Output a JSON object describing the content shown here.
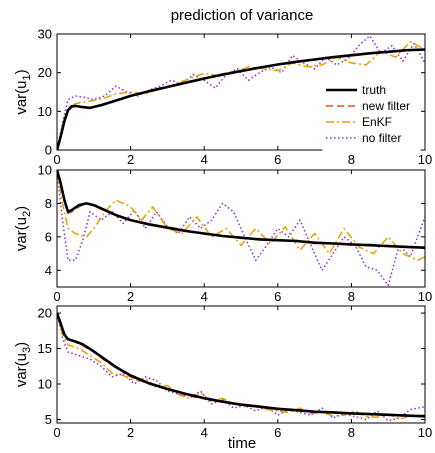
{
  "figure": {
    "title": "prediction of variance",
    "xlabel": "time"
  },
  "legend": {
    "placement": "top-right",
    "entries": [
      {
        "name": "truth",
        "color": "#000000",
        "style": "solid"
      },
      {
        "name": "new filter",
        "color": "#e8501e",
        "style": "dashed"
      },
      {
        "name": "EnKF",
        "color": "#e8a000",
        "style": "dashdot"
      },
      {
        "name": "no filter",
        "color": "#8a2be2",
        "style": "dotted"
      }
    ]
  },
  "chart_data": [
    {
      "type": "line",
      "ylabel_base": "var(u",
      "ylabel_sub": "1",
      "ylabel_end": ")",
      "xlim": [
        0,
        10
      ],
      "ylim": [
        0,
        30
      ],
      "xticks": [
        0,
        2,
        4,
        6,
        8,
        10
      ],
      "yticks": [
        0,
        10,
        20,
        30
      ],
      "series": [
        {
          "name": "truth",
          "x": [
            0,
            0.1,
            0.2,
            0.3,
            0.4,
            0.5,
            0.7,
            0.9,
            1.2,
            1.5,
            2,
            2.5,
            3,
            3.5,
            4,
            4.5,
            5,
            5.5,
            6,
            6.5,
            7,
            7.5,
            8,
            8.5,
            9,
            9.5,
            10
          ],
          "y": [
            0,
            3.5,
            7.5,
            10.3,
            11.3,
            11.4,
            11.1,
            10.9,
            11.6,
            12.5,
            14.0,
            15.2,
            16.3,
            17.4,
            18.5,
            19.5,
            20.4,
            21.3,
            22.1,
            22.8,
            23.4,
            24.0,
            24.5,
            25.0,
            25.4,
            25.8,
            26.0
          ]
        },
        {
          "name": "new filter",
          "x": [
            0,
            0.1,
            0.2,
            0.3,
            0.4,
            0.5,
            0.7,
            0.9,
            1.2,
            1.5,
            2,
            2.5,
            3,
            3.5,
            4,
            4.5,
            5,
            5.5,
            6,
            6.5,
            7,
            7.5,
            8,
            8.5,
            9,
            9.5,
            10
          ],
          "y": [
            0,
            3.4,
            7.3,
            10.1,
            11.1,
            11.3,
            11.0,
            10.9,
            11.7,
            12.6,
            14.1,
            15.3,
            16.5,
            17.5,
            18.6,
            19.7,
            20.6,
            21.2,
            22.0,
            22.9,
            23.3,
            24.1,
            24.7,
            25.1,
            25.3,
            25.9,
            26.1
          ]
        },
        {
          "name": "EnKF",
          "x": [
            0,
            0.15,
            0.3,
            0.5,
            0.8,
            1.0,
            1.3,
            1.6,
            2.0,
            2.4,
            2.8,
            3.2,
            3.6,
            4.0,
            4.4,
            4.8,
            5.2,
            5.6,
            6.0,
            6.4,
            6.8,
            7.2,
            7.6,
            8.0,
            8.4,
            8.8,
            9.2,
            9.6,
            10
          ],
          "y": [
            0,
            5.0,
            10.0,
            12.0,
            12.5,
            12.8,
            13.5,
            14.5,
            15.0,
            14.5,
            15.8,
            17.0,
            18.5,
            19.8,
            19.2,
            20.0,
            21.5,
            21.0,
            20.5,
            22.5,
            21.5,
            22.0,
            24.0,
            22.5,
            22.0,
            25.5,
            24.0,
            28.0,
            26.0
          ]
        },
        {
          "name": "no filter",
          "x": [
            0,
            0.15,
            0.3,
            0.5,
            0.8,
            1.0,
            1.3,
            1.6,
            1.9,
            2.2,
            2.5,
            2.8,
            3.1,
            3.4,
            3.7,
            4.0,
            4.3,
            4.6,
            4.9,
            5.2,
            5.5,
            5.8,
            6.1,
            6.4,
            6.7,
            7.0,
            7.3,
            7.6,
            7.9,
            8.2,
            8.5,
            8.8,
            9.1,
            9.4,
            9.7,
            10
          ],
          "y": [
            0,
            7.0,
            13.0,
            14.0,
            13.5,
            13.0,
            14.0,
            16.5,
            15.0,
            14.0,
            15.5,
            16.5,
            18.0,
            17.0,
            19.5,
            18.0,
            16.0,
            19.5,
            21.0,
            18.0,
            20.0,
            21.5,
            20.0,
            24.5,
            22.5,
            21.0,
            24.0,
            22.0,
            23.5,
            27.0,
            29.5,
            25.0,
            27.0,
            23.0,
            27.5,
            22.5
          ]
        }
      ]
    },
    {
      "type": "line",
      "ylabel_base": "var(u",
      "ylabel_sub": "2",
      "ylabel_end": ")",
      "xlim": [
        0,
        10
      ],
      "ylim": [
        3,
        10
      ],
      "xticks": [
        0,
        2,
        4,
        6,
        8,
        10
      ],
      "yticks": [
        4,
        6,
        8,
        10
      ],
      "series": [
        {
          "name": "truth",
          "x": [
            0,
            0.1,
            0.2,
            0.3,
            0.4,
            0.6,
            0.8,
            1.0,
            1.3,
            1.6,
            2.0,
            2.5,
            3,
            3.5,
            4,
            4.5,
            5,
            5.5,
            6,
            6.5,
            7,
            7.5,
            8,
            8.5,
            9,
            9.5,
            10
          ],
          "y": [
            10,
            9.2,
            8.2,
            7.5,
            7.6,
            7.9,
            8.0,
            7.9,
            7.6,
            7.3,
            7.0,
            6.75,
            6.55,
            6.35,
            6.2,
            6.05,
            5.95,
            5.85,
            5.8,
            5.75,
            5.65,
            5.6,
            5.55,
            5.5,
            5.45,
            5.4,
            5.35
          ]
        },
        {
          "name": "new filter",
          "x": [
            0,
            0.1,
            0.2,
            0.3,
            0.4,
            0.6,
            0.8,
            1.0,
            1.3,
            1.6,
            2.0,
            2.5,
            3,
            3.5,
            4,
            4.5,
            5,
            5.5,
            6,
            6.5,
            7,
            7.5,
            8,
            8.5,
            9,
            9.5,
            10
          ],
          "y": [
            10,
            9.1,
            8.1,
            7.4,
            7.5,
            7.8,
            8.0,
            7.85,
            7.55,
            7.3,
            7.0,
            6.7,
            6.6,
            6.4,
            6.15,
            6.1,
            5.9,
            5.9,
            5.75,
            5.8,
            5.6,
            5.65,
            5.5,
            5.55,
            5.4,
            5.45,
            5.3
          ]
        },
        {
          "name": "EnKF",
          "x": [
            0,
            0.15,
            0.3,
            0.5,
            0.8,
            1.0,
            1.3,
            1.6,
            2.0,
            2.3,
            2.6,
            3.0,
            3.4,
            3.8,
            4.2,
            4.6,
            5.0,
            5.4,
            5.8,
            6.2,
            6.6,
            7.0,
            7.4,
            7.8,
            8.2,
            8.6,
            9.0,
            9.4,
            9.8,
            10
          ],
          "y": [
            10,
            8.0,
            6.5,
            6.2,
            6.0,
            6.5,
            7.5,
            8.2,
            7.8,
            7.0,
            7.8,
            6.5,
            6.2,
            7.2,
            6.0,
            6.5,
            5.5,
            6.5,
            5.6,
            6.6,
            5.2,
            6.2,
            5.0,
            6.5,
            5.4,
            5.0,
            6.0,
            5.0,
            4.6,
            4.8
          ]
        },
        {
          "name": "no filter",
          "x": [
            0,
            0.15,
            0.3,
            0.5,
            0.7,
            0.9,
            1.2,
            1.5,
            1.8,
            2.1,
            2.4,
            2.7,
            3.0,
            3.3,
            3.6,
            3.9,
            4.2,
            4.5,
            4.8,
            5.1,
            5.4,
            5.7,
            6.0,
            6.3,
            6.6,
            6.9,
            7.2,
            7.5,
            7.8,
            8.1,
            8.4,
            8.7,
            9.0,
            9.3,
            9.6,
            10
          ],
          "y": [
            10,
            7.0,
            4.6,
            4.6,
            5.8,
            7.5,
            7.0,
            7.5,
            6.8,
            7.6,
            6.5,
            7.5,
            6.6,
            6.2,
            7.2,
            6.5,
            7.0,
            8.0,
            7.5,
            6.0,
            4.6,
            5.5,
            6.5,
            6.0,
            7.0,
            5.5,
            4.0,
            5.0,
            6.0,
            5.5,
            4.2,
            4.0,
            3.1,
            5.5,
            4.8,
            7.2
          ]
        }
      ]
    },
    {
      "type": "line",
      "ylabel_base": "var(u",
      "ylabel_sub": "3",
      "ylabel_end": ")",
      "xlim": [
        0,
        10
      ],
      "ylim": [
        4.5,
        21
      ],
      "xticks": [
        0,
        2,
        4,
        6,
        8,
        10
      ],
      "yticks": [
        5,
        10,
        15,
        20
      ],
      "series": [
        {
          "name": "truth",
          "x": [
            0,
            0.1,
            0.2,
            0.3,
            0.5,
            0.7,
            1.0,
            1.3,
            1.6,
            2.0,
            2.5,
            3,
            3.5,
            4,
            4.5,
            5,
            5.5,
            6,
            6.5,
            7,
            7.5,
            8,
            8.5,
            9,
            9.5,
            10
          ],
          "y": [
            20,
            18.5,
            17.0,
            16.3,
            16.0,
            15.6,
            14.6,
            13.5,
            12.4,
            11.2,
            10.1,
            9.3,
            8.6,
            8.0,
            7.5,
            7.1,
            6.8,
            6.5,
            6.3,
            6.1,
            6.0,
            5.85,
            5.75,
            5.65,
            5.55,
            5.45
          ]
        },
        {
          "name": "new filter",
          "x": [
            0,
            0.1,
            0.2,
            0.3,
            0.5,
            0.7,
            1.0,
            1.3,
            1.6,
            2.0,
            2.5,
            3,
            3.5,
            4,
            4.5,
            5,
            5.5,
            6,
            6.5,
            7,
            7.5,
            8,
            8.5,
            9,
            9.5,
            10
          ],
          "y": [
            20,
            18.3,
            16.9,
            16.2,
            15.9,
            15.4,
            14.5,
            13.3,
            12.3,
            11.0,
            10.0,
            9.4,
            8.4,
            7.9,
            7.6,
            7.0,
            6.9,
            6.4,
            6.4,
            6.0,
            6.1,
            5.8,
            5.8,
            5.6,
            5.6,
            5.4
          ]
        },
        {
          "name": "EnKF",
          "x": [
            0,
            0.15,
            0.3,
            0.6,
            0.9,
            1.2,
            1.5,
            1.8,
            2.1,
            2.4,
            2.7,
            3.0,
            3.3,
            3.6,
            3.9,
            4.2,
            4.5,
            4.8,
            5.1,
            5.4,
            5.7,
            6.0,
            6.3,
            6.6,
            6.9,
            7.2,
            7.5,
            7.8,
            8.1,
            8.4,
            8.7,
            9.0,
            9.3,
            9.6,
            10
          ],
          "y": [
            20,
            17.0,
            15.5,
            15.0,
            14.0,
            13.0,
            11.5,
            11.2,
            10.5,
            10.8,
            9.5,
            9.8,
            8.5,
            8.0,
            8.8,
            7.5,
            8.0,
            7.2,
            6.8,
            7.0,
            6.4,
            6.2,
            6.0,
            6.6,
            5.8,
            6.0,
            5.5,
            5.6,
            6.2,
            5.4,
            5.3,
            5.8,
            5.0,
            5.5,
            5.6
          ]
        },
        {
          "name": "no filter",
          "x": [
            0,
            0.15,
            0.3,
            0.6,
            0.9,
            1.2,
            1.5,
            1.8,
            2.1,
            2.4,
            2.7,
            3.0,
            3.3,
            3.6,
            3.9,
            4.2,
            4.5,
            4.8,
            5.1,
            5.4,
            5.7,
            6.0,
            6.3,
            6.6,
            6.9,
            7.2,
            7.5,
            7.8,
            8.1,
            8.4,
            8.7,
            9.0,
            9.3,
            9.6,
            10
          ],
          "y": [
            20,
            16.5,
            14.5,
            14.0,
            13.5,
            12.5,
            11.0,
            11.5,
            10.0,
            11.0,
            10.5,
            9.0,
            8.6,
            8.0,
            9.0,
            7.2,
            7.8,
            6.6,
            7.0,
            6.2,
            6.8,
            5.6,
            6.4,
            6.0,
            5.6,
            6.6,
            5.2,
            5.8,
            5.4,
            5.0,
            6.2,
            4.8,
            5.2,
            6.4,
            6.8
          ]
        }
      ]
    }
  ]
}
